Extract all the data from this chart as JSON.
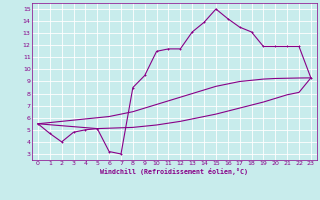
{
  "xlabel": "Windchill (Refroidissement éolien,°C)",
  "xlim": [
    -0.5,
    23.5
  ],
  "ylim": [
    2.5,
    15.5
  ],
  "xticks": [
    0,
    1,
    2,
    3,
    4,
    5,
    6,
    7,
    8,
    9,
    10,
    11,
    12,
    13,
    14,
    15,
    16,
    17,
    18,
    19,
    20,
    21,
    22,
    23
  ],
  "yticks": [
    3,
    4,
    5,
    6,
    7,
    8,
    9,
    10,
    11,
    12,
    13,
    14,
    15
  ],
  "bg_color": "#c8ecec",
  "line_color": "#880088",
  "grid_color": "#aadddd",
  "line1_x": [
    0,
    1,
    2,
    3,
    4,
    5,
    6,
    7,
    8,
    9,
    10,
    11,
    12,
    13,
    14,
    15,
    16,
    17,
    18,
    19,
    20,
    21,
    22,
    23
  ],
  "line1_y": [
    5.5,
    4.7,
    4.0,
    4.8,
    5.0,
    5.1,
    3.2,
    3.0,
    8.5,
    9.5,
    11.5,
    11.7,
    11.7,
    13.1,
    13.9,
    15.0,
    14.2,
    13.5,
    13.1,
    11.9,
    11.9,
    11.9,
    11.9,
    9.3
  ],
  "line2_x": [
    0,
    1,
    2,
    3,
    4,
    5,
    6,
    7,
    8,
    9,
    10,
    11,
    12,
    13,
    14,
    15,
    16,
    17,
    18,
    19,
    20,
    21,
    22,
    23
  ],
  "line2_y": [
    5.5,
    5.6,
    5.7,
    5.8,
    5.9,
    6.0,
    6.1,
    6.3,
    6.5,
    6.8,
    7.1,
    7.4,
    7.7,
    8.0,
    8.3,
    8.6,
    8.8,
    9.0,
    9.1,
    9.2,
    9.25,
    9.27,
    9.29,
    9.3
  ],
  "line3_x": [
    0,
    5,
    8,
    10,
    12,
    15,
    17,
    19,
    20,
    21,
    22,
    23
  ],
  "line3_y": [
    5.5,
    5.1,
    5.2,
    5.4,
    5.7,
    6.3,
    6.8,
    7.3,
    7.6,
    7.9,
    8.1,
    9.3
  ]
}
